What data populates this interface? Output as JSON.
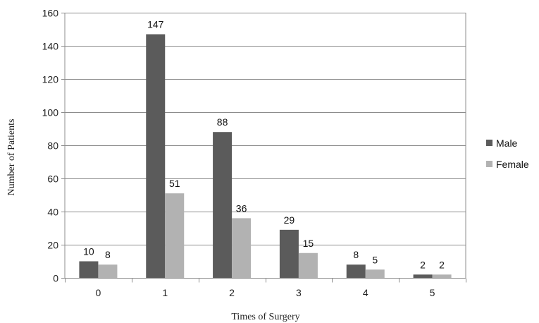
{
  "chart_data": {
    "type": "bar",
    "title": "",
    "xlabel": "Times of Surgery",
    "ylabel": "Number of Patients",
    "categories": [
      "0",
      "1",
      "2",
      "3",
      "4",
      "5"
    ],
    "series": [
      {
        "name": "Male",
        "values": [
          10,
          147,
          88,
          29,
          8,
          2
        ],
        "color": "#5b5b5b"
      },
      {
        "name": "Female",
        "values": [
          8,
          51,
          36,
          15,
          5,
          2
        ],
        "color": "#b2b2b2"
      }
    ],
    "ylim": [
      0,
      160
    ],
    "yticks": [
      "0",
      "20",
      "40",
      "60",
      "80",
      "100",
      "120",
      "140",
      "160"
    ],
    "grid": true,
    "legend_position": "right"
  }
}
